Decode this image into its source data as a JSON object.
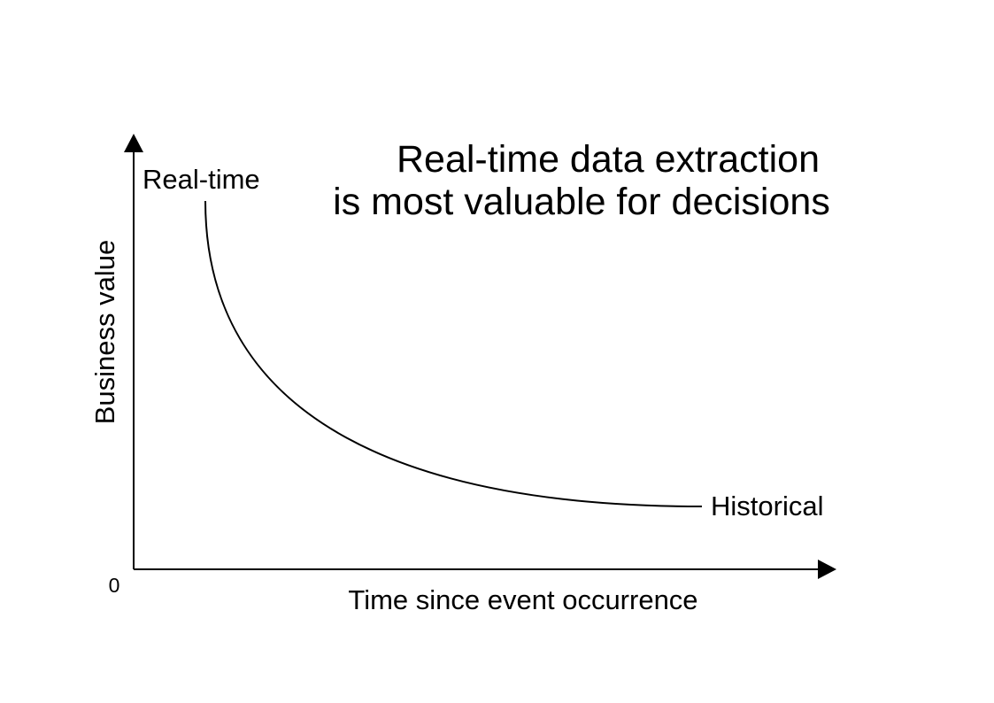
{
  "colors": {
    "background": "#ffffff",
    "stroke": "#000000",
    "text": "#000000"
  },
  "title": {
    "line1": "Real-time data extraction",
    "line2": "is most valuable for decisions"
  },
  "axes": {
    "y_label": "Business value",
    "x_label": "Time since event occurrence",
    "origin_label": "0"
  },
  "curve": {
    "start_label": "Real-time",
    "end_label": "Historical",
    "shape": "decaying"
  }
}
